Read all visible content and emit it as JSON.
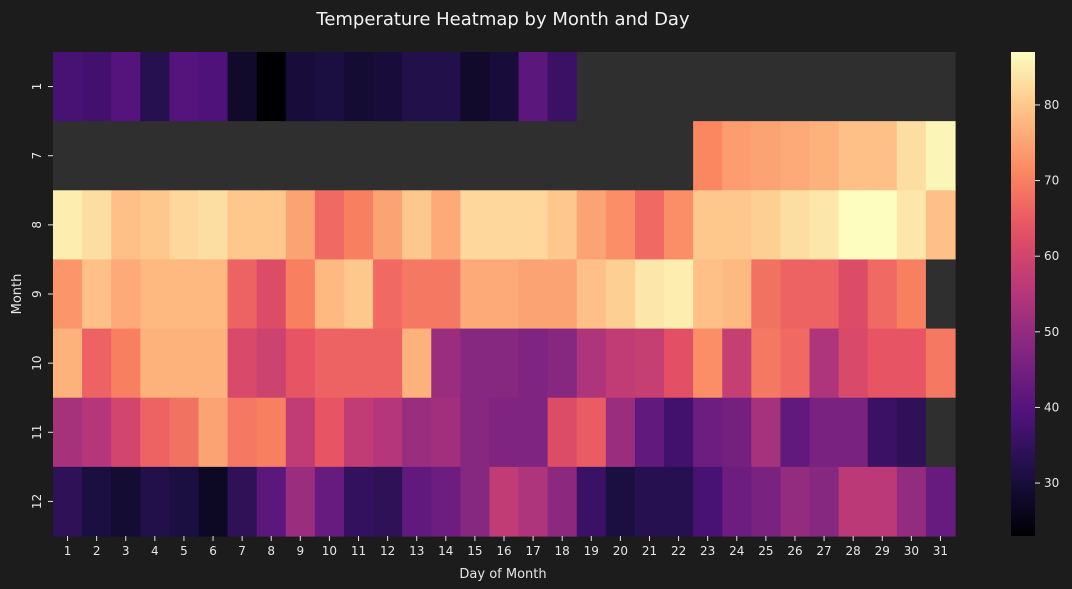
{
  "chart_data": {
    "type": "heatmap",
    "title": "Temperature Heatmap by Month and Day",
    "xlabel": "Day of Month",
    "ylabel": "Month",
    "x": [
      "1",
      "2",
      "3",
      "4",
      "5",
      "6",
      "7",
      "8",
      "9",
      "10",
      "11",
      "12",
      "13",
      "14",
      "15",
      "16",
      "17",
      "18",
      "19",
      "20",
      "21",
      "22",
      "23",
      "24",
      "25",
      "26",
      "27",
      "28",
      "29",
      "30",
      "31"
    ],
    "y": [
      "1",
      "7",
      "8",
      "9",
      "10",
      "11",
      "12"
    ],
    "values": [
      [
        38,
        37,
        40,
        33,
        40,
        39,
        28,
        23,
        30,
        31,
        29,
        30,
        32,
        32,
        28,
        30,
        41,
        36,
        null,
        null,
        null,
        null,
        null,
        null,
        null,
        null,
        null,
        null,
        null,
        null,
        null
      ],
      [
        null,
        null,
        null,
        null,
        null,
        null,
        null,
        null,
        null,
        null,
        null,
        null,
        null,
        null,
        null,
        null,
        null,
        null,
        null,
        null,
        null,
        null,
        71,
        74,
        75,
        76,
        77,
        79,
        79,
        83,
        86
      ],
      [
        85,
        83,
        79,
        80,
        82,
        83,
        80,
        80,
        75,
        67,
        70,
        75,
        80,
        76,
        82,
        82,
        82,
        80,
        75,
        72,
        67,
        72,
        80,
        80,
        81,
        83,
        84,
        87,
        87,
        84,
        79
      ],
      [
        73,
        79,
        76,
        78,
        78,
        78,
        66,
        62,
        70,
        78,
        80,
        67,
        69,
        69,
        76,
        76,
        75,
        75,
        79,
        81,
        84,
        85,
        79,
        78,
        68,
        66,
        66,
        62,
        67,
        70,
        null
      ],
      [
        77,
        66,
        70,
        77,
        77,
        77,
        61,
        59,
        64,
        66,
        66,
        66,
        77,
        51,
        48,
        48,
        47,
        48,
        54,
        57,
        58,
        63,
        72,
        58,
        69,
        67,
        54,
        61,
        64,
        64,
        69
      ],
      [
        53,
        55,
        60,
        66,
        68,
        75,
        69,
        70,
        57,
        64,
        57,
        55,
        51,
        52,
        48,
        47,
        47,
        62,
        65,
        51,
        42,
        37,
        44,
        45,
        53,
        42,
        46,
        46,
        36,
        34,
        null
      ],
      [
        34,
        31,
        29,
        32,
        31,
        27,
        34,
        41,
        51,
        43,
        35,
        34,
        42,
        44,
        48,
        57,
        54,
        49,
        36,
        31,
        33,
        33,
        38,
        44,
        46,
        50,
        48,
        56,
        56,
        50,
        43
      ]
    ],
    "missing_color": "#2f2f2f",
    "colormap": "magma",
    "colorbar": {
      "min": 23,
      "max": 87,
      "ticks": [
        "30",
        "40",
        "50",
        "60",
        "70",
        "80"
      ]
    },
    "x_tick_labels": [
      "1",
      "2",
      "3",
      "4",
      "5",
      "6",
      "7",
      "8",
      "9",
      "10",
      "11",
      "12",
      "13",
      "14",
      "15",
      "16",
      "17",
      "18",
      "19",
      "20",
      "21",
      "22",
      "23",
      "24",
      "25",
      "26",
      "27",
      "28",
      "29",
      "30",
      "31"
    ],
    "y_tick_labels": [
      "1",
      "7",
      "8",
      "9",
      "10",
      "11",
      "12"
    ]
  }
}
